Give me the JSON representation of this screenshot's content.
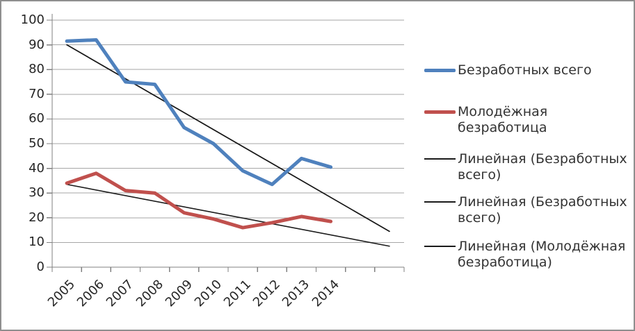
{
  "chart_data": {
    "type": "line",
    "title": "",
    "xlabel": "",
    "ylabel": "",
    "categories": [
      "2005",
      "2006",
      "2007",
      "2008",
      "2009",
      "2010",
      "2011",
      "2012",
      "2013",
      "2014"
    ],
    "series": [
      {
        "name": "Безработных всего",
        "color": "#4F81BD",
        "line_width": 5,
        "values": [
          91.5,
          92,
          75,
          74,
          56.5,
          50,
          39,
          33.5,
          44,
          40.5
        ]
      },
      {
        "name": "Молодёжная безработица",
        "color": "#C0504D",
        "line_width": 5,
        "values": [
          34,
          38,
          31,
          30,
          22,
          19.5,
          16,
          18,
          20.5,
          18.5
        ]
      }
    ],
    "trendlines": [
      {
        "name": "Линейная (Безработных всего)",
        "color": "#1A1A1A",
        "start_value": 90,
        "end_value": 14.5,
        "periods": 12
      },
      {
        "name": "Линейная (Безработных всего)",
        "color": "#1A1A1A",
        "start_value": 90,
        "end_value": 14.5,
        "periods": 12
      },
      {
        "name": "Линейная (Молодёжная безработица)",
        "color": "#1A1A1A",
        "start_value": 33.5,
        "end_value": 8.5,
        "periods": 12
      }
    ],
    "ylim": [
      0,
      100
    ],
    "ytick_step": 10,
    "x_total_periods": 12,
    "forecast_periods": 2,
    "grid": true,
    "legend_position": "right"
  },
  "axes": {
    "y_tick_labels": [
      "100",
      "90",
      "80",
      "70",
      "60",
      "50",
      "40",
      "30",
      "20",
      "10",
      "0"
    ],
    "x_tick_labels": [
      "2005",
      "2006",
      "2007",
      "2008",
      "2009",
      "2010",
      "2011",
      "2012",
      "2013",
      "2014"
    ]
  },
  "legend": {
    "items": [
      {
        "label": "Безработных всего",
        "swatch": "thick-line",
        "color": "#4F81BD"
      },
      {
        "label": "Молодёжная безработица",
        "swatch": "thick-line",
        "color": "#C0504D"
      },
      {
        "label": "Линейная (Безработных всего)",
        "swatch": "thin-line",
        "color": "#1A1A1A"
      },
      {
        "label": "Линейная (Безработных всего)",
        "swatch": "thin-line",
        "color": "#1A1A1A"
      },
      {
        "label": "Линейная (Молодёжная безработица)",
        "swatch": "thin-line",
        "color": "#1A1A1A"
      }
    ]
  },
  "colors": {
    "gridline": "#A6A6A6",
    "axis": "#808080",
    "text": "#262626",
    "frame_border": "#8F8F8F",
    "background": "#FFFFFF"
  }
}
